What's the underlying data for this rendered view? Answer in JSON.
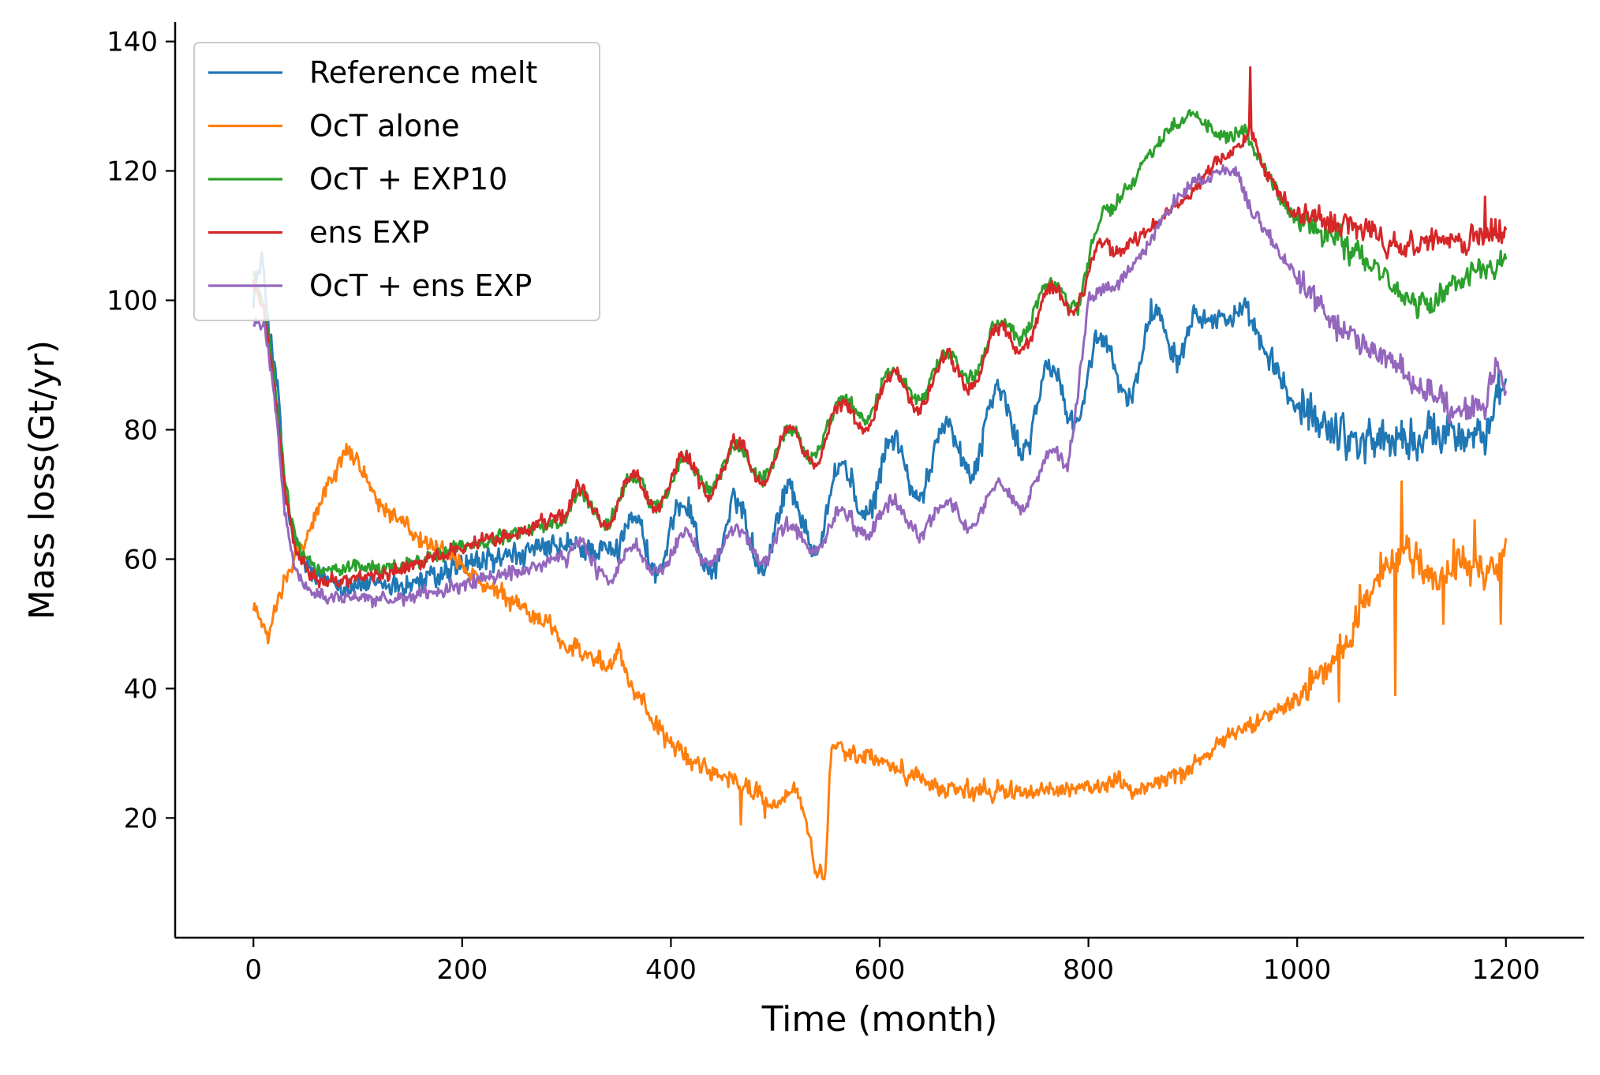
{
  "chart_data": {
    "type": "line",
    "title": "",
    "xlabel": "Time (month)",
    "ylabel": "Mass loss(Gt/yr)",
    "xlim": [
      -75,
      1275
    ],
    "ylim": [
      1.5,
      143
    ],
    "xticks": [
      0,
      200,
      400,
      600,
      800,
      1000,
      1200
    ],
    "yticks": [
      20,
      40,
      60,
      80,
      100,
      120,
      140
    ],
    "grid": false,
    "legend": {
      "placement": "top-left"
    },
    "series": [
      {
        "name": "Reference melt",
        "color": "#1f77b4",
        "noise": 2.2,
        "points": [
          [
            0,
            101
          ],
          [
            8,
            106
          ],
          [
            15,
            96
          ],
          [
            20,
            90
          ],
          [
            25,
            83
          ],
          [
            30,
            70
          ],
          [
            40,
            62
          ],
          [
            50,
            59
          ],
          [
            60,
            57
          ],
          [
            80,
            56.5
          ],
          [
            100,
            56
          ],
          [
            120,
            56
          ],
          [
            140,
            56
          ],
          [
            160,
            56.5
          ],
          [
            180,
            57.5
          ],
          [
            200,
            59
          ],
          [
            250,
            60.5
          ],
          [
            300,
            62
          ],
          [
            350,
            61
          ],
          [
            400,
            64
          ],
          [
            450,
            63
          ],
          [
            500,
            65
          ],
          [
            550,
            68
          ],
          [
            600,
            73
          ],
          [
            650,
            75
          ],
          [
            700,
            80
          ],
          [
            750,
            83
          ],
          [
            800,
            88
          ],
          [
            850,
            91
          ],
          [
            880,
            96
          ],
          [
            900,
            99
          ],
          [
            920,
            97
          ],
          [
            950,
            98
          ],
          [
            970,
            92
          ],
          [
            1000,
            83
          ],
          [
            1050,
            79
          ],
          [
            1100,
            78
          ],
          [
            1150,
            80
          ],
          [
            1180,
            79
          ],
          [
            1200,
            87
          ]
        ],
        "waves": [
          [
            50,
            5.5,
            350,
            900
          ]
        ]
      },
      {
        "name": "OcT alone",
        "color": "#ff7f0e",
        "noise": 1.6,
        "points": [
          [
            0,
            53
          ],
          [
            8,
            50
          ],
          [
            14,
            47
          ],
          [
            20,
            53
          ],
          [
            30,
            57
          ],
          [
            40,
            61
          ],
          [
            50,
            63
          ],
          [
            60,
            67
          ],
          [
            70,
            71
          ],
          [
            80,
            74
          ],
          [
            90,
            77
          ],
          [
            100,
            75
          ],
          [
            110,
            72
          ],
          [
            120,
            69
          ],
          [
            140,
            66
          ],
          [
            160,
            63
          ],
          [
            180,
            61
          ],
          [
            200,
            59
          ],
          [
            220,
            56
          ],
          [
            240,
            54
          ],
          [
            260,
            52
          ],
          [
            280,
            50
          ],
          [
            300,
            47
          ],
          [
            320,
            45
          ],
          [
            340,
            43
          ],
          [
            350,
            46
          ],
          [
            360,
            41
          ],
          [
            380,
            36
          ],
          [
            400,
            31
          ],
          [
            420,
            29
          ],
          [
            440,
            27
          ],
          [
            460,
            26
          ],
          [
            480,
            24
          ],
          [
            500,
            22
          ],
          [
            520,
            25
          ],
          [
            530,
            19
          ],
          [
            540,
            11
          ],
          [
            548,
            11
          ],
          [
            552,
            26
          ],
          [
            555,
            31
          ],
          [
            570,
            30
          ],
          [
            600,
            29
          ],
          [
            650,
            25
          ],
          [
            700,
            24
          ],
          [
            750,
            24
          ],
          [
            800,
            24.5
          ],
          [
            830,
            26
          ],
          [
            850,
            24
          ],
          [
            870,
            26
          ],
          [
            900,
            28
          ],
          [
            920,
            31
          ],
          [
            950,
            34
          ],
          [
            970,
            36
          ],
          [
            1000,
            39
          ],
          [
            1030,
            43
          ],
          [
            1050,
            48
          ],
          [
            1070,
            55
          ],
          [
            1090,
            60
          ],
          [
            1110,
            61
          ],
          [
            1130,
            57
          ],
          [
            1150,
            59
          ],
          [
            1170,
            58
          ],
          [
            1190,
            57
          ],
          [
            1200,
            63
          ]
        ],
        "spikes": [
          [
            1100,
            72
          ],
          [
            1094,
            39
          ],
          [
            1140,
            50
          ],
          [
            1170,
            66
          ],
          [
            1195,
            50
          ],
          [
            1040,
            38
          ],
          [
            1060,
            56
          ],
          [
            467,
            19
          ],
          [
            490,
            20
          ],
          [
            350,
            47
          ],
          [
            1080,
            61
          ],
          [
            1150,
            63
          ]
        ]
      },
      {
        "name": "OcT + EXP10",
        "color": "#2ca02c",
        "noise": 1.3,
        "points": [
          [
            0,
            104
          ],
          [
            10,
            99
          ],
          [
            20,
            88
          ],
          [
            30,
            72
          ],
          [
            40,
            63
          ],
          [
            50,
            60
          ],
          [
            60,
            58.5
          ],
          [
            80,
            58
          ],
          [
            100,
            59
          ],
          [
            120,
            58.5
          ],
          [
            140,
            59
          ],
          [
            160,
            60
          ],
          [
            180,
            61
          ],
          [
            200,
            62
          ],
          [
            250,
            64
          ],
          [
            300,
            66
          ],
          [
            350,
            69
          ],
          [
            400,
            72
          ],
          [
            450,
            74
          ],
          [
            500,
            76
          ],
          [
            550,
            80
          ],
          [
            600,
            86
          ],
          [
            650,
            88
          ],
          [
            700,
            92
          ],
          [
            750,
            99
          ],
          [
            790,
            102
          ],
          [
            800,
            106
          ],
          [
            820,
            113
          ],
          [
            840,
            118
          ],
          [
            860,
            123
          ],
          [
            880,
            127
          ],
          [
            900,
            129
          ],
          [
            910,
            128
          ],
          [
            930,
            125
          ],
          [
            950,
            126
          ],
          [
            980,
            117
          ],
          [
            1000,
            112
          ],
          [
            1050,
            108
          ],
          [
            1080,
            105
          ],
          [
            1100,
            100
          ],
          [
            1130,
            99
          ],
          [
            1150,
            103
          ],
          [
            1200,
            106
          ]
        ],
        "waves": [
          [
            50,
            3.0,
            300,
            820
          ]
        ]
      },
      {
        "name": "ens EXP",
        "color": "#d62728",
        "noise": 1.3,
        "points": [
          [
            0,
            103
          ],
          [
            10,
            99
          ],
          [
            20,
            86
          ],
          [
            30,
            71
          ],
          [
            40,
            62
          ],
          [
            50,
            59
          ],
          [
            60,
            57
          ],
          [
            80,
            56.5
          ],
          [
            100,
            57
          ],
          [
            120,
            57.5
          ],
          [
            140,
            58.5
          ],
          [
            160,
            59.5
          ],
          [
            180,
            61
          ],
          [
            200,
            62
          ],
          [
            250,
            64
          ],
          [
            300,
            67
          ],
          [
            350,
            69
          ],
          [
            400,
            72
          ],
          [
            450,
            74
          ],
          [
            500,
            76
          ],
          [
            550,
            79
          ],
          [
            600,
            85
          ],
          [
            650,
            87
          ],
          [
            700,
            91
          ],
          [
            750,
            97
          ],
          [
            800,
            104
          ],
          [
            820,
            107
          ],
          [
            850,
            110
          ],
          [
            880,
            114
          ],
          [
            900,
            117
          ],
          [
            920,
            121
          ],
          [
            940,
            123
          ],
          [
            955,
            126
          ],
          [
            970,
            120
          ],
          [
            1000,
            113
          ],
          [
            1050,
            112
          ],
          [
            1100,
            108
          ],
          [
            1150,
            109
          ],
          [
            1200,
            111
          ]
        ],
        "waves": [
          [
            50,
            3.5,
            300,
            820
          ]
        ],
        "spikes": [
          [
            955,
            136
          ],
          [
            1180,
            116
          ]
        ]
      },
      {
        "name": "OcT + ens EXP",
        "color": "#9467bd",
        "noise": 1.3,
        "points": [
          [
            0,
            97
          ],
          [
            10,
            96
          ],
          [
            20,
            85
          ],
          [
            30,
            67
          ],
          [
            40,
            58
          ],
          [
            50,
            55.5
          ],
          [
            60,
            54.5
          ],
          [
            80,
            54
          ],
          [
            100,
            54
          ],
          [
            120,
            53.5
          ],
          [
            140,
            54
          ],
          [
            160,
            54.5
          ],
          [
            180,
            55
          ],
          [
            200,
            56
          ],
          [
            250,
            58
          ],
          [
            300,
            60
          ],
          [
            350,
            59
          ],
          [
            400,
            61
          ],
          [
            450,
            62
          ],
          [
            500,
            62.5
          ],
          [
            550,
            64
          ],
          [
            600,
            67
          ],
          [
            650,
            66
          ],
          [
            700,
            68
          ],
          [
            750,
            72
          ],
          [
            780,
            76
          ],
          [
            800,
            100
          ],
          [
            830,
            103
          ],
          [
            860,
            109
          ],
          [
            880,
            115
          ],
          [
            900,
            118
          ],
          [
            920,
            119
          ],
          [
            940,
            120
          ],
          [
            960,
            113
          ],
          [
            980,
            108
          ],
          [
            1000,
            103
          ],
          [
            1030,
            98
          ],
          [
            1050,
            94
          ],
          [
            1080,
            91
          ],
          [
            1100,
            90
          ],
          [
            1130,
            85
          ],
          [
            1150,
            83
          ],
          [
            1180,
            83
          ],
          [
            1190,
            90
          ],
          [
            1200,
            86
          ]
        ],
        "waves": [
          [
            50,
            2.5,
            300,
            800
          ]
        ]
      }
    ]
  }
}
